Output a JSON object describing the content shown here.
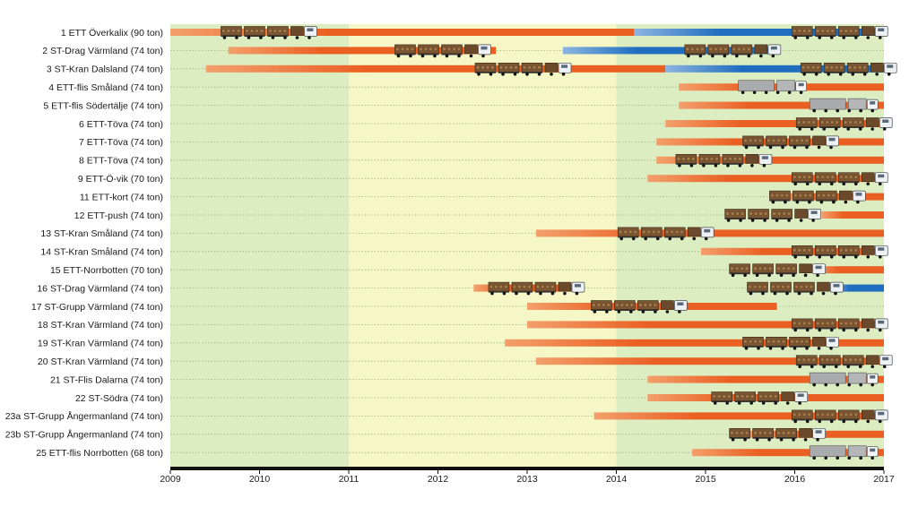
{
  "chart_data": {
    "type": "bar",
    "x_axis": {
      "min": 2009,
      "max": 2017,
      "ticks": [
        "2009",
        "2010",
        "2011",
        "2012",
        "2013",
        "2014",
        "2015",
        "2016",
        "2017"
      ]
    },
    "background_bands": [
      {
        "from": 2009,
        "to": 2011,
        "color": "#dcedc1"
      },
      {
        "from": 2011,
        "to": 2014,
        "color": "#f5f7c6"
      },
      {
        "from": 2014,
        "to": 2017,
        "color": "#dcedc1"
      }
    ],
    "colors": {
      "orange_start": "#f3a06c",
      "orange": "#ea5f22",
      "blue_start": "#8cb4e0",
      "blue": "#1f6dbf",
      "axis": "#111111",
      "grid": "#9db37f"
    },
    "rows": [
      {
        "label": "1 ETT Överkalix (90 ton)",
        "segments": [
          {
            "start": 2009.0,
            "end": 2014.2,
            "color": "orange"
          },
          {
            "start": 2014.2,
            "end": 2017.0,
            "color": "blue"
          }
        ],
        "trucks": [
          {
            "at": 2010.1,
            "kind": "timber"
          },
          {
            "at": 2016.5,
            "kind": "timber"
          }
        ]
      },
      {
        "label": "2 ST-Drag Värmland (74 ton)",
        "segments": [
          {
            "start": 2009.65,
            "end": 2012.65,
            "color": "orange"
          },
          {
            "start": 2013.4,
            "end": 2015.8,
            "color": "blue"
          }
        ],
        "trucks": [
          {
            "at": 2012.05,
            "kind": "timber"
          },
          {
            "at": 2015.3,
            "kind": "timber"
          }
        ]
      },
      {
        "label": "3 ST-Kran Dalsland (74 ton)",
        "segments": [
          {
            "start": 2009.4,
            "end": 2014.55,
            "color": "orange"
          },
          {
            "start": 2014.55,
            "end": 2017.0,
            "color": "blue"
          }
        ],
        "trucks": [
          {
            "at": 2012.95,
            "kind": "timber"
          },
          {
            "at": 2016.6,
            "kind": "timber"
          }
        ]
      },
      {
        "label": "4 ETT-flis Småland (74 ton)",
        "segments": [
          {
            "start": 2014.7,
            "end": 2017.0,
            "color": "orange"
          }
        ],
        "trucks": [
          {
            "at": 2015.75,
            "kind": "chip"
          }
        ]
      },
      {
        "label": "5 ETT-flis Södertälje (74 ton)",
        "segments": [
          {
            "start": 2014.7,
            "end": 2017.0,
            "color": "orange"
          }
        ],
        "trucks": [
          {
            "at": 2016.55,
            "kind": "chip"
          }
        ]
      },
      {
        "label": "6 ETT-Töva (74 ton)",
        "segments": [
          {
            "start": 2014.55,
            "end": 2017.0,
            "color": "orange"
          }
        ],
        "trucks": [
          {
            "at": 2016.55,
            "kind": "timber"
          }
        ]
      },
      {
        "label": "7 ETT-Töva (74 ton)",
        "segments": [
          {
            "start": 2014.45,
            "end": 2017.0,
            "color": "orange"
          }
        ],
        "trucks": [
          {
            "at": 2015.95,
            "kind": "timber"
          }
        ]
      },
      {
        "label": "8 ETT-Töva (74 ton)",
        "segments": [
          {
            "start": 2014.45,
            "end": 2017.0,
            "color": "orange"
          }
        ],
        "trucks": [
          {
            "at": 2015.2,
            "kind": "timber"
          }
        ]
      },
      {
        "label": "9 ETT-Ö-vik (70 ton)",
        "segments": [
          {
            "start": 2014.35,
            "end": 2017.0,
            "color": "orange"
          }
        ],
        "trucks": [
          {
            "at": 2016.5,
            "kind": "timber"
          }
        ]
      },
      {
        "label": "11 ETT-kort (74 ton)",
        "segments": [
          {
            "start": 2015.85,
            "end": 2017.0,
            "color": "orange"
          }
        ],
        "trucks": [
          {
            "at": 2016.25,
            "kind": "timber"
          }
        ]
      },
      {
        "label": "12 ETT-push (74 ton)",
        "segments": [
          {
            "start": 2016.3,
            "end": 2017.0,
            "color": "orange"
          }
        ],
        "trucks": [
          {
            "at": 2015.75,
            "kind": "timber"
          }
        ]
      },
      {
        "label": "13 ST-Kran Småland (74 ton)",
        "segments": [
          {
            "start": 2013.1,
            "end": 2017.0,
            "color": "orange"
          }
        ],
        "trucks": [
          {
            "at": 2014.55,
            "kind": "timber"
          }
        ]
      },
      {
        "label": "14 ST-Kran Småland (74 ton)",
        "segments": [
          {
            "start": 2014.95,
            "end": 2017.0,
            "color": "orange"
          }
        ],
        "trucks": [
          {
            "at": 2016.5,
            "kind": "timber"
          }
        ]
      },
      {
        "label": "15 ETT-Norrbotten (70 ton)",
        "segments": [
          {
            "start": 2016.2,
            "end": 2017.0,
            "color": "orange"
          }
        ],
        "trucks": [
          {
            "at": 2015.8,
            "kind": "timber"
          }
        ]
      },
      {
        "label": "16 ST-Drag Värmland (74 ton)",
        "segments": [
          {
            "start": 2012.4,
            "end": 2013.6,
            "color": "orange"
          },
          {
            "start": 2016.4,
            "end": 2017.0,
            "color": "blue"
          }
        ],
        "trucks": [
          {
            "at": 2013.1,
            "kind": "timber"
          },
          {
            "at": 2016.0,
            "kind": "timber"
          }
        ]
      },
      {
        "label": "17 ST-Grupp Värmland (74 ton)",
        "segments": [
          {
            "start": 2013.0,
            "end": 2015.8,
            "color": "orange"
          }
        ],
        "trucks": [
          {
            "at": 2014.25,
            "kind": "timber"
          }
        ]
      },
      {
        "label": "18 ST-Kran Värmland (74 ton)",
        "segments": [
          {
            "start": 2013.0,
            "end": 2017.0,
            "color": "orange"
          }
        ],
        "trucks": [
          {
            "at": 2016.5,
            "kind": "timber"
          }
        ]
      },
      {
        "label": "19 ST-Kran Värmland (74 ton)",
        "segments": [
          {
            "start": 2012.75,
            "end": 2017.0,
            "color": "orange"
          }
        ],
        "trucks": [
          {
            "at": 2015.95,
            "kind": "timber"
          }
        ]
      },
      {
        "label": "20 ST-Kran Värmland (74 ton)",
        "segments": [
          {
            "start": 2013.1,
            "end": 2017.0,
            "color": "orange"
          }
        ],
        "trucks": [
          {
            "at": 2016.55,
            "kind": "timber"
          }
        ]
      },
      {
        "label": "21 ST-Flis Dalarna (74 ton)",
        "segments": [
          {
            "start": 2014.35,
            "end": 2017.0,
            "color": "orange"
          }
        ],
        "trucks": [
          {
            "at": 2016.55,
            "kind": "chip"
          }
        ]
      },
      {
        "label": "22 ST-Södra (74 ton)",
        "segments": [
          {
            "start": 2014.35,
            "end": 2017.0,
            "color": "orange"
          }
        ],
        "trucks": [
          {
            "at": 2015.6,
            "kind": "timber"
          }
        ]
      },
      {
        "label": "23a ST-Grupp Ångermanland (74 ton)",
        "segments": [
          {
            "start": 2013.75,
            "end": 2017.0,
            "color": "orange"
          }
        ],
        "trucks": [
          {
            "at": 2016.5,
            "kind": "timber"
          }
        ]
      },
      {
        "label": "23b ST-Grupp Ångermanland (74 ton)",
        "segments": [
          {
            "start": 2015.4,
            "end": 2017.0,
            "color": "orange"
          }
        ],
        "trucks": [
          {
            "at": 2015.8,
            "kind": "timber"
          }
        ]
      },
      {
        "label": "25 ETT-flis Norrbotten (68 ton)",
        "segments": [
          {
            "start": 2014.85,
            "end": 2017.0,
            "color": "orange"
          }
        ],
        "trucks": [
          {
            "at": 2016.55,
            "kind": "chip"
          }
        ]
      }
    ]
  }
}
